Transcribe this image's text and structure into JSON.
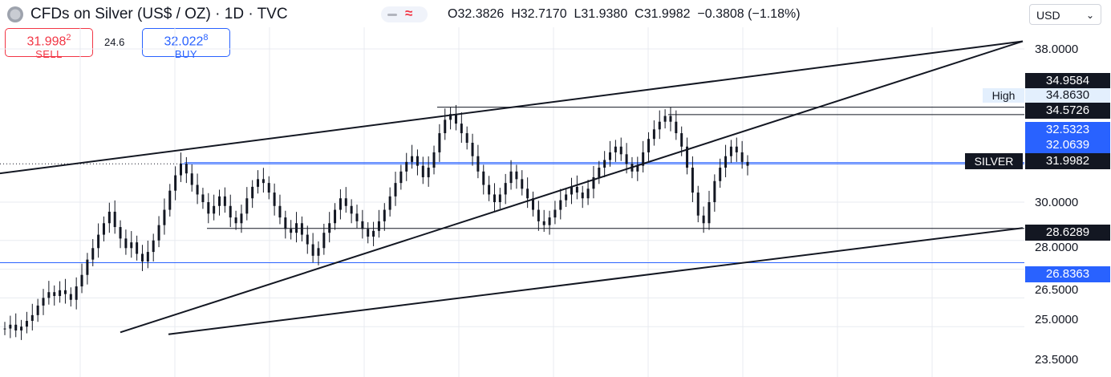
{
  "header": {
    "title": "CFDs on Silver (US$ / OZ) · 1D · TVC",
    "ohlc": {
      "open_label": "O",
      "open": "32.3826",
      "high_label": "H",
      "high": "32.7170",
      "low_label": "L",
      "low": "31.9380",
      "close_label": "C",
      "close": "31.9982",
      "change": "−0.3808 (−1.18%)"
    },
    "currency": "USD"
  },
  "trade": {
    "sell_price": "31.998",
    "sell_sup": "2",
    "sell_label": "SELL",
    "spread": "24.6",
    "buy_price": "32.022",
    "buy_sup": "8",
    "buy_label": "BUY"
  },
  "colors": {
    "sell": "#f23645",
    "buy": "#2962ff",
    "candle": "#131722",
    "grid": "#e8ebf0",
    "hline_blue": "#2962ff"
  },
  "chart_data": {
    "type": "candlestick",
    "symbol": "SILVER",
    "axis": {
      "ticks": [
        38.0,
        30.0,
        28.0,
        26.5,
        25.0,
        23.5
      ],
      "tick_labels": [
        "38.0000",
        "30.0000",
        "28.0000",
        "26.5000",
        "25.0000",
        "23.5000"
      ],
      "ylim": [
        23.2,
        39.0
      ]
    },
    "last_price": {
      "label": "SILVER",
      "value": "31.9982"
    },
    "high_marker": {
      "label": "High",
      "value": "34.8630"
    },
    "price_tags": [
      {
        "value": "34.9584",
        "style": "black"
      },
      {
        "value": "34.5726",
        "style": "black"
      },
      {
        "value": "32.5323",
        "style": "blue"
      },
      {
        "value": "32.0639",
        "style": "blue"
      },
      {
        "value": "28.6289",
        "style": "black"
      },
      {
        "value": "26.8363",
        "style": "blue"
      }
    ],
    "horizontal_lines": [
      {
        "value": 34.9584,
        "color": "#131722"
      },
      {
        "value": 34.5726,
        "color": "#131722"
      },
      {
        "value": 32.0639,
        "color": "#2962ff"
      },
      {
        "value": 31.9982,
        "color": "#2962ff"
      },
      {
        "value": 28.6289,
        "color": "#131722"
      },
      {
        "value": 26.8363,
        "color": "#2962ff"
      }
    ],
    "candles": [
      23.4,
      23.6,
      23.3,
      23.5,
      23.8,
      24.1,
      24.6,
      25.0,
      25.3,
      25.1,
      25.4,
      25.2,
      24.9,
      25.6,
      26.2,
      27.0,
      27.6,
      28.3,
      28.9,
      29.5,
      28.7,
      28.1,
      27.6,
      27.9,
      27.3,
      26.9,
      27.4,
      28.0,
      28.8,
      29.6,
      30.6,
      31.4,
      32.0,
      31.5,
      30.9,
      30.4,
      30.0,
      29.4,
      29.8,
      30.3,
      29.8,
      29.2,
      28.9,
      29.4,
      30.2,
      30.8,
      31.2,
      31.0,
      30.5,
      29.8,
      29.2,
      28.6,
      28.4,
      28.9,
      28.3,
      27.8,
      27.2,
      27.6,
      28.4,
      28.9,
      29.6,
      30.2,
      29.8,
      29.4,
      29.0,
      28.6,
      28.2,
      28.5,
      29.0,
      29.6,
      30.3,
      31.0,
      31.6,
      32.1,
      32.4,
      31.9,
      31.3,
      31.8,
      32.6,
      33.6,
      34.3,
      34.6,
      34.1,
      33.6,
      33.1,
      32.4,
      31.6,
      30.9,
      30.4,
      30.0,
      30.4,
      31.0,
      31.6,
      31.2,
      30.7,
      30.2,
      29.6,
      29.0,
      28.8,
      29.2,
      29.6,
      30.1,
      30.4,
      30.8,
      30.5,
      30.2,
      30.7,
      31.3,
      31.8,
      32.2,
      32.6,
      32.9,
      32.5,
      32.0,
      31.6,
      31.9,
      32.6,
      33.3,
      33.8,
      34.2,
      34.5,
      34.2,
      33.6,
      32.9,
      31.8,
      30.5,
      29.3,
      28.9,
      30.0,
      31.1,
      31.8,
      32.4,
      32.9,
      32.6,
      32.1,
      31.9
    ],
    "trendlines": [
      {
        "from": [
          0,
          31.5
        ],
        "to": [
          1275,
          38.4
        ]
      },
      {
        "from": [
          150,
          23.2
        ],
        "to": [
          1275,
          38.4
        ]
      },
      {
        "from": [
          210,
          23.1
        ],
        "to": [
          1275,
          28.65
        ]
      }
    ]
  }
}
